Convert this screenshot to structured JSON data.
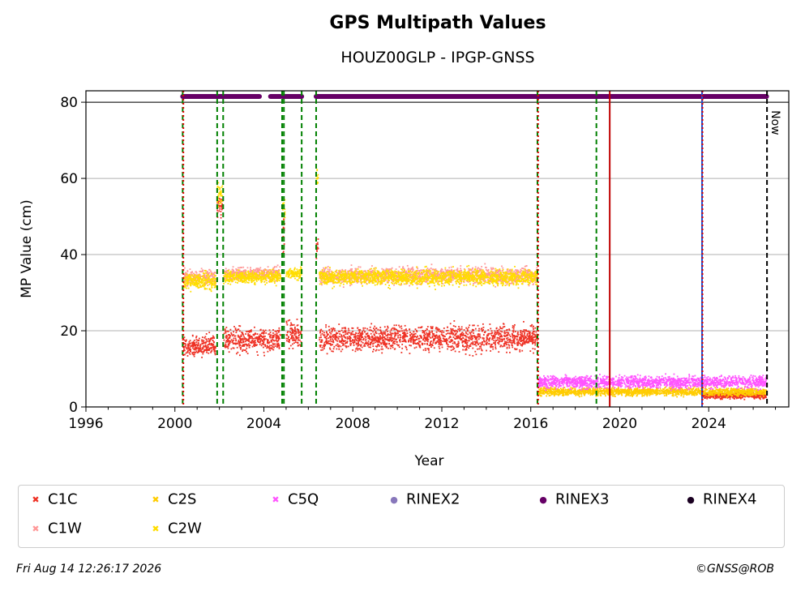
{
  "chart_data": {
    "type": "scatter",
    "title": "GPS Multipath Values",
    "subtitle": "HOUZ00GLP - IPGP-GNSS",
    "xlabel": "Year",
    "ylabel": "MP Value (cm)",
    "xlim": [
      1996,
      2027.6
    ],
    "ylim": [
      0,
      83
    ],
    "x_ticks": [
      1996,
      2000,
      2004,
      2008,
      2012,
      2016,
      2020,
      2024
    ],
    "x_tick_labels": [
      "1996",
      "2000",
      "2004",
      "2008",
      "2012",
      "2016",
      "2020",
      "2024"
    ],
    "y_ticks": [
      0,
      20,
      40,
      60,
      80
    ],
    "y_tick_labels": [
      "0",
      "20",
      "40",
      "60",
      "80"
    ],
    "grid": "horizontal",
    "legend_position": "below",
    "now_label": "Now",
    "now_year": 2026.62,
    "event_lines": [
      {
        "year": 2000.35,
        "color": "#008000",
        "style": "dashed"
      },
      {
        "year": 2000.38,
        "color": "#e00000",
        "style": "dotted"
      },
      {
        "year": 2001.9,
        "color": "#008000",
        "style": "dashed"
      },
      {
        "year": 2002.17,
        "color": "#008000",
        "style": "dashed"
      },
      {
        "year": 2004.82,
        "color": "#008000",
        "style": "dashed"
      },
      {
        "year": 2004.9,
        "color": "#008000",
        "style": "dashed"
      },
      {
        "year": 2005.7,
        "color": "#008000",
        "style": "dashed"
      },
      {
        "year": 2006.35,
        "color": "#008000",
        "style": "dashed"
      },
      {
        "year": 2016.3,
        "color": "#008000",
        "style": "dashed"
      },
      {
        "year": 2016.33,
        "color": "#e00000",
        "style": "dotted"
      },
      {
        "year": 2018.95,
        "color": "#008000",
        "style": "dashed"
      },
      {
        "year": 2019.55,
        "color": "#c00000",
        "style": "solid"
      },
      {
        "year": 2023.7,
        "color": "#2050d0",
        "style": "solid"
      },
      {
        "year": 2023.72,
        "color": "#e00000",
        "style": "dotted"
      },
      {
        "year": 2026.62,
        "color": "#000000",
        "style": "dashed"
      }
    ],
    "series": [
      {
        "name": "C1C",
        "color": "#ee3124",
        "marker": "x",
        "segments": [
          {
            "x0": 2000.35,
            "x1": 2001.85,
            "y": 16,
            "spread": 2.5
          },
          {
            "x0": 2001.9,
            "x1": 2002.15,
            "y": 53,
            "spread": 3
          },
          {
            "x0": 2002.2,
            "x1": 2004.75,
            "y": 17.5,
            "spread": 3
          },
          {
            "x0": 2004.85,
            "x1": 2004.95,
            "y": 45,
            "spread": 6
          },
          {
            "x0": 2005.0,
            "x1": 2005.7,
            "y": 19,
            "spread": 3
          },
          {
            "x0": 2006.35,
            "x1": 2006.45,
            "y": 42,
            "spread": 3
          },
          {
            "x0": 2006.5,
            "x1": 2016.3,
            "y": 18,
            "spread": 3
          },
          {
            "x0": 2023.7,
            "x1": 2026.6,
            "y": 3,
            "spread": 0.8
          }
        ]
      },
      {
        "name": "C1W",
        "color": "#ff9999",
        "marker": "x",
        "segments": [
          {
            "x0": 2000.4,
            "x1": 2001.85,
            "y": 34,
            "spread": 2
          },
          {
            "x0": 2002.2,
            "x1": 2004.75,
            "y": 35,
            "spread": 1.6
          },
          {
            "x0": 2006.5,
            "x1": 2016.3,
            "y": 34.5,
            "spread": 2
          }
        ]
      },
      {
        "name": "C2S",
        "color": "#ffcc00",
        "marker": "x",
        "segments": [
          {
            "x0": 2016.35,
            "x1": 2026.6,
            "y": 4,
            "spread": 1
          }
        ]
      },
      {
        "name": "C2W",
        "color": "#ffdd00",
        "marker": "x",
        "segments": [
          {
            "x0": 2000.4,
            "x1": 2001.85,
            "y": 33,
            "spread": 2
          },
          {
            "x0": 2001.9,
            "x1": 2002.15,
            "y": 56,
            "spread": 3
          },
          {
            "x0": 2002.2,
            "x1": 2004.75,
            "y": 34,
            "spread": 1.5
          },
          {
            "x0": 2004.85,
            "x1": 2004.95,
            "y": 52,
            "spread": 3
          },
          {
            "x0": 2005.0,
            "x1": 2005.7,
            "y": 35,
            "spread": 1.5
          },
          {
            "x0": 2006.35,
            "x1": 2006.45,
            "y": 60,
            "spread": 2
          },
          {
            "x0": 2006.5,
            "x1": 2016.3,
            "y": 34,
            "spread": 2
          }
        ]
      },
      {
        "name": "C5Q",
        "color": "#ff55ff",
        "marker": "x",
        "segments": [
          {
            "x0": 2016.35,
            "x1": 2026.6,
            "y": 6.5,
            "spread": 1.5
          }
        ]
      },
      {
        "name": "RINEX2",
        "color": "#8877bb",
        "marker": "dot",
        "segments": []
      },
      {
        "name": "RINEX3",
        "color": "#660066",
        "marker": "dot",
        "segments": [
          {
            "x0": 2000.35,
            "x1": 2001.85,
            "y": 81.5
          },
          {
            "x0": 2001.9,
            "x1": 2003.8,
            "y": 81.5
          },
          {
            "x0": 2004.3,
            "x1": 2004.75,
            "y": 81.5
          },
          {
            "x0": 2004.85,
            "x1": 2005.7,
            "y": 81.5
          },
          {
            "x0": 2006.35,
            "x1": 2026.6,
            "y": 81.5
          }
        ]
      },
      {
        "name": "RINEX4",
        "color": "#1a0021",
        "marker": "dot",
        "segments": []
      }
    ]
  },
  "legend": [
    {
      "label": "C1C",
      "color": "#ee3124",
      "marker": "✖"
    },
    {
      "label": "C2S",
      "color": "#ffcc00",
      "marker": "✖"
    },
    {
      "label": "C5Q",
      "color": "#ff55ff",
      "marker": "✖"
    },
    {
      "label": "RINEX2",
      "color": "#8877bb",
      "marker": "●"
    },
    {
      "label": "RINEX3",
      "color": "#660066",
      "marker": "●"
    },
    {
      "label": "RINEX4",
      "color": "#1a0021",
      "marker": "●"
    },
    {
      "label": "C1W",
      "color": "#ff9999",
      "marker": "✖"
    },
    {
      "label": "C2W",
      "color": "#ffdd00",
      "marker": "✖"
    }
  ],
  "footer": {
    "timestamp": "Fri Aug 14 12:26:17 2026",
    "credit": "©GNSS@ROB"
  }
}
